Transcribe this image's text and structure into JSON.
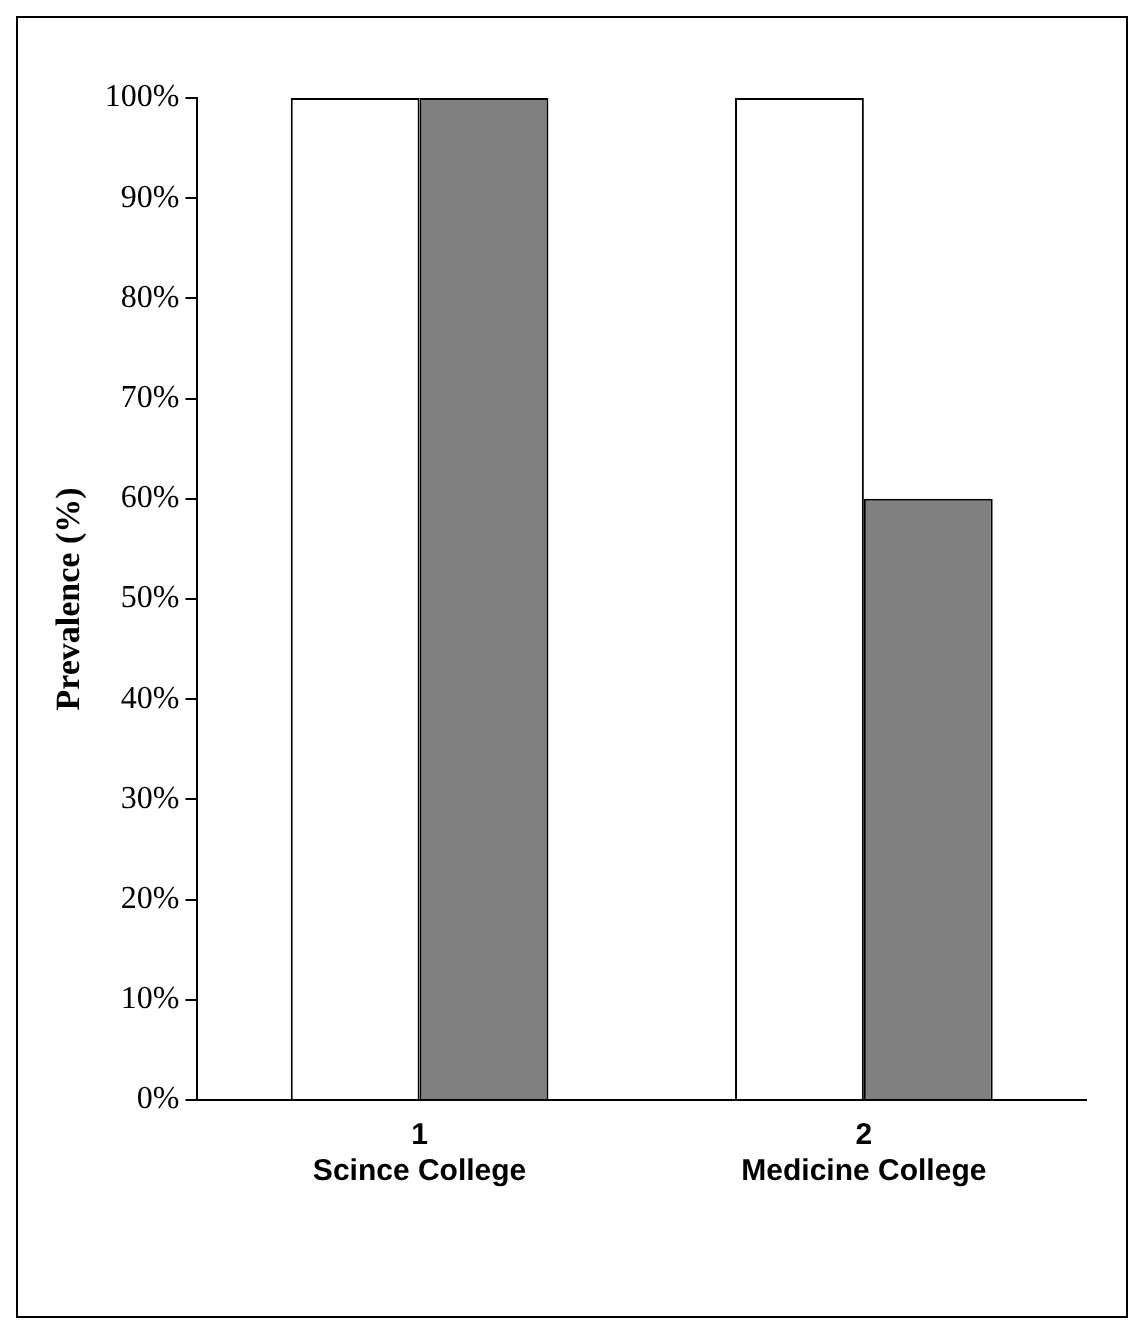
{
  "chart_data": {
    "type": "bar",
    "ylabel": "Prevalence (%)",
    "categories": [
      "1\nScince College",
      "2\nMedicine College"
    ],
    "series": [
      {
        "color": "#ffffff",
        "values": [
          100,
          100
        ]
      },
      {
        "color": "#808080",
        "values": [
          100,
          60
        ]
      }
    ],
    "ylim": [
      0,
      100
    ],
    "yticks": [
      {
        "value": 0,
        "label": "0%"
      },
      {
        "value": 10,
        "label": "10%"
      },
      {
        "value": 20,
        "label": "20%"
      },
      {
        "value": 30,
        "label": "30%"
      },
      {
        "value": 40,
        "label": "40%"
      },
      {
        "value": 50,
        "label": "50%"
      },
      {
        "value": 60,
        "label": "60%"
      },
      {
        "value": 70,
        "label": "70%"
      },
      {
        "value": 80,
        "label": "80%"
      },
      {
        "value": 90,
        "label": "90%"
      },
      {
        "value": 100,
        "label": "100%"
      }
    ],
    "grid": false,
    "legend": false
  }
}
